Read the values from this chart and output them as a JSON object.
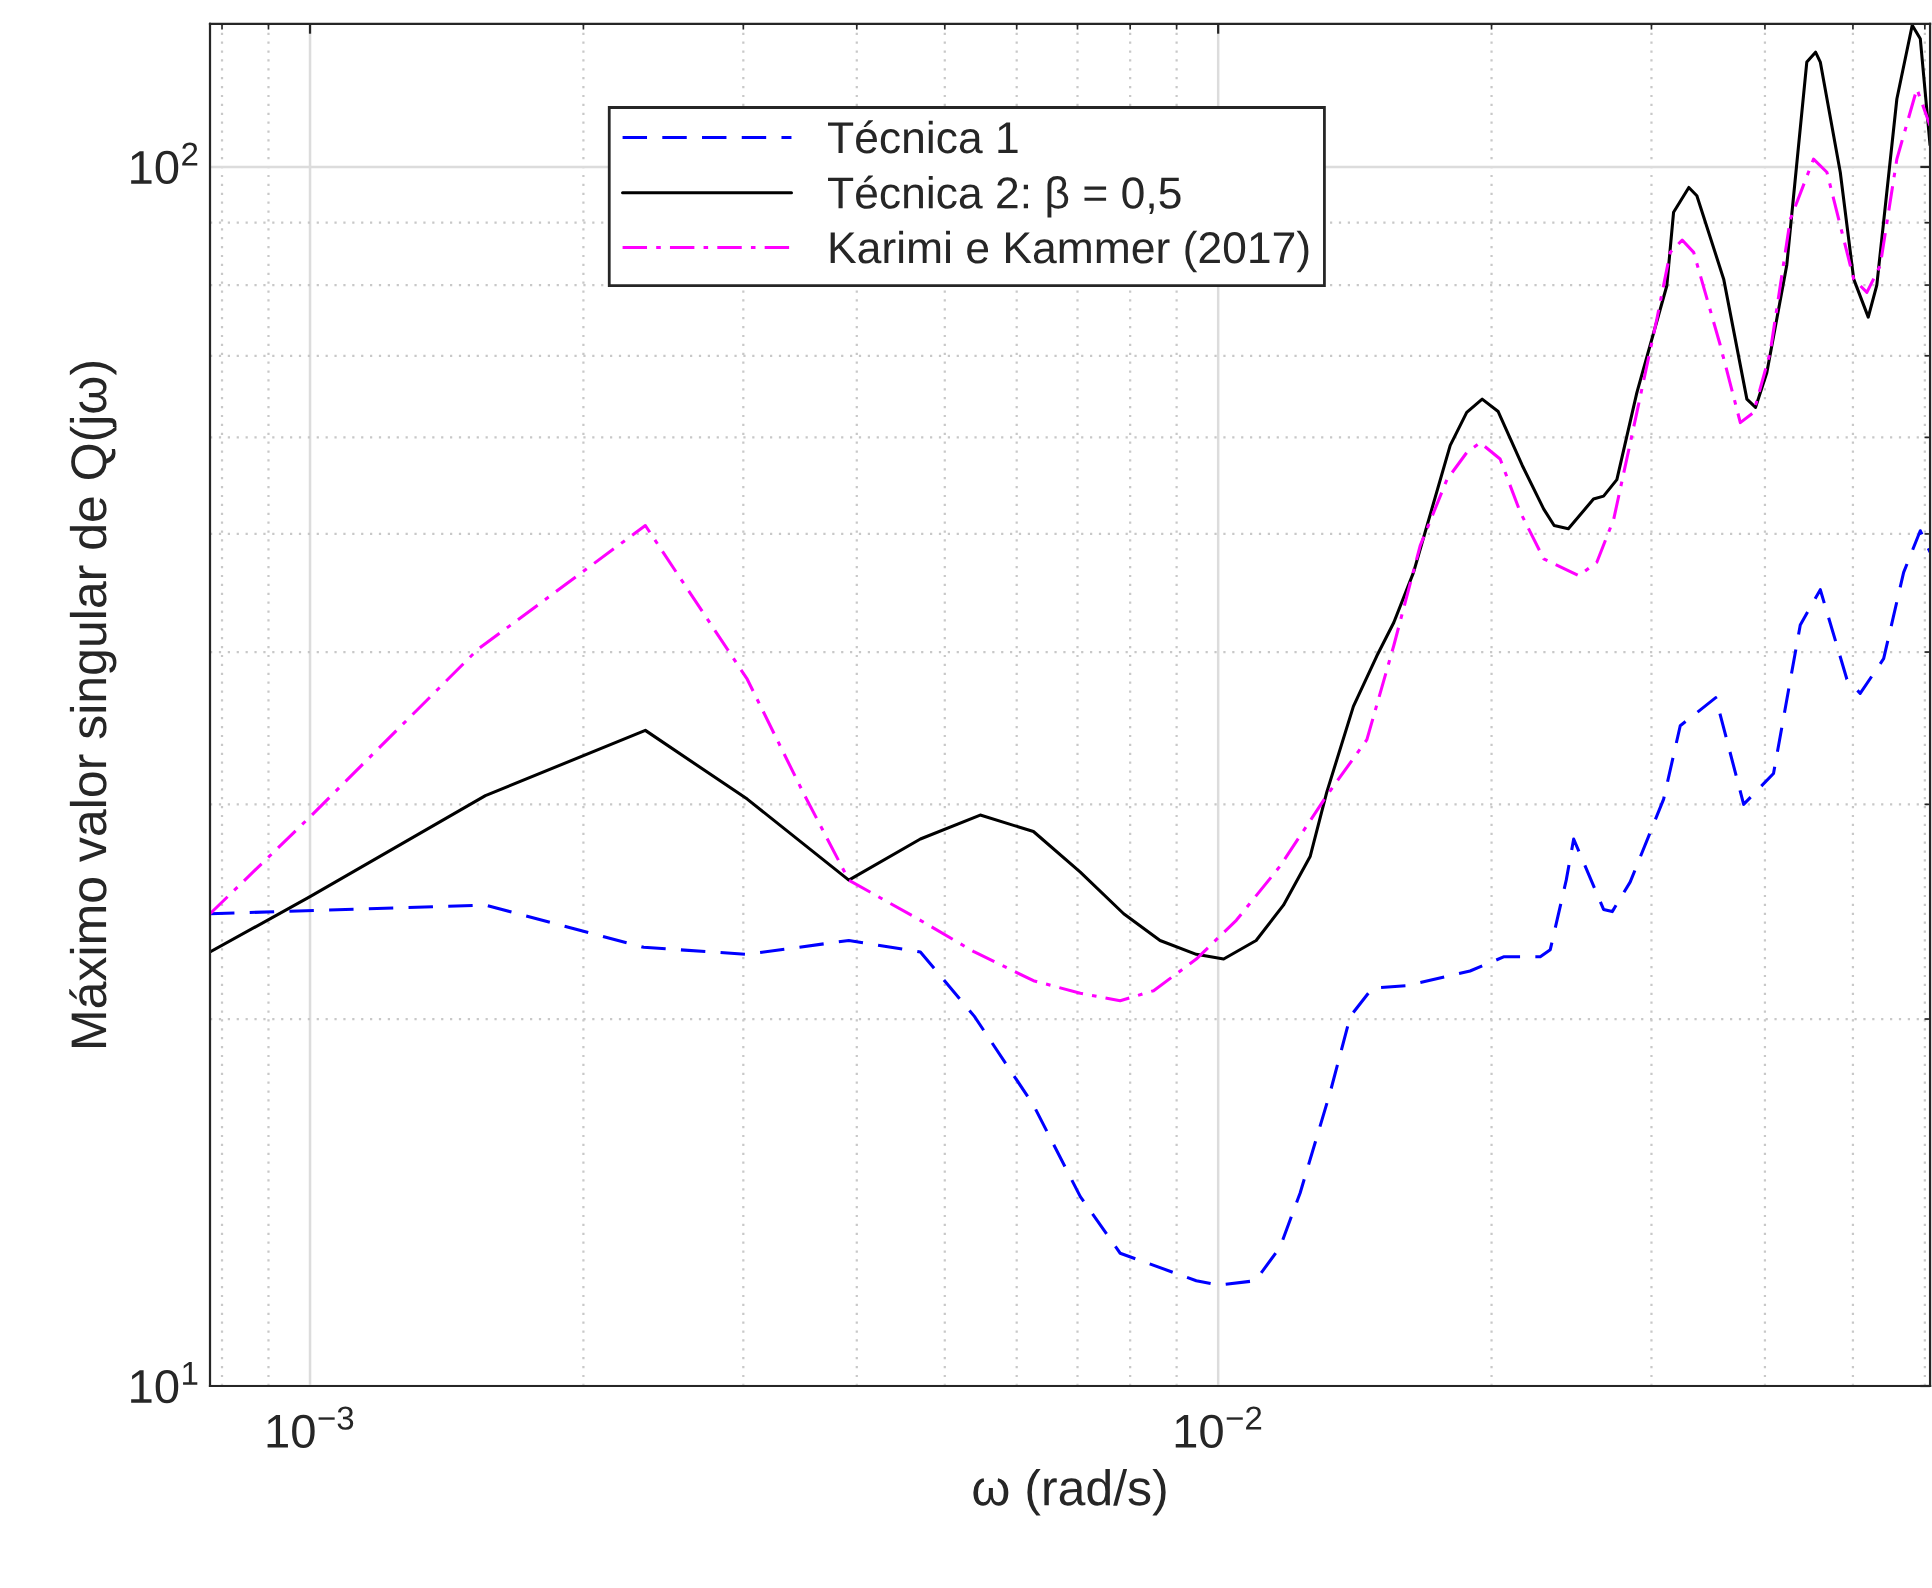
{
  "chart_data": {
    "type": "line",
    "xlabel": "ω (rad/s)",
    "ylabel": "Máximo valor singular de Q(jω)",
    "log": "xy",
    "grid": true,
    "legend": "top",
    "xlim": [
      0.000776,
      0.0608
    ],
    "ylim": [
      10,
      131
    ],
    "xticks": [
      {
        "value": 0.001,
        "label": "10$^{−3}$"
      },
      {
        "value": 0.01,
        "label": "10$^{−2}$"
      }
    ],
    "yticks": [
      {
        "value": 10,
        "label": "10$^{1}$"
      },
      {
        "value": 100,
        "label": "10$^{2}$"
      }
    ],
    "series": [
      {
        "name": "Técnica 1",
        "color": "#0000ff",
        "line_style": "dashed",
        "x": [
          0.000776,
          0.00156,
          0.00233,
          0.00303,
          0.00392,
          0.0047,
          0.00539,
          0.00626,
          0.00705,
          0.0078,
          0.00946,
          0.01,
          0.01099,
          0.0117,
          0.01231,
          0.01328,
          0.01398,
          0.01478,
          0.01611,
          0.01894,
          0.02065,
          0.02263,
          0.02321,
          0.02417,
          0.02463,
          0.02657,
          0.02716,
          0.02842,
          0.03094,
          0.03227,
          0.03531,
          0.0379,
          0.04088,
          0.04375,
          0.04603,
          0.04924,
          0.05093,
          0.05405,
          0.05686,
          0.05931,
          0.0608
        ],
        "values": [
          24.4,
          24.8,
          22.9,
          22.6,
          23.2,
          22.7,
          20.1,
          17.0,
          14.3,
          12.85,
          12.2,
          12.1,
          12.2,
          13.0,
          14.4,
          17.4,
          20.1,
          21.2,
          21.3,
          21.9,
          22.5,
          22.5,
          22.8,
          26.0,
          28.1,
          24.6,
          24.5,
          25.9,
          30.3,
          34.8,
          36.7,
          30.0,
          31.8,
          42.1,
          45.0,
          38.0,
          37.0,
          39.5,
          46.5,
          50.3,
          48.3
        ]
      },
      {
        "name": "Técnica 2: β = 0,5",
        "color": "#000000",
        "line_style": "solid",
        "x": [
          0.000776,
          0.001,
          0.00156,
          0.00234,
          0.00303,
          0.00392,
          0.0047,
          0.00547,
          0.00626,
          0.00705,
          0.00787,
          0.00863,
          0.00946,
          0.01014,
          0.01101,
          0.0118,
          0.01263,
          0.01317,
          0.01409,
          0.01495,
          0.01561,
          0.01641,
          0.01801,
          0.01878,
          0.01953,
          0.02034,
          0.02162,
          0.02283,
          0.02344,
          0.0243,
          0.0259,
          0.02657,
          0.02748,
          0.02891,
          0.03119,
          0.03173,
          0.03298,
          0.03366,
          0.03603,
          0.03821,
          0.03906,
          0.04019,
          0.04228,
          0.04448,
          0.04548,
          0.04603,
          0.04842,
          0.0501,
          0.05198,
          0.05312,
          0.05589,
          0.05811,
          0.05931,
          0.0608
        ],
        "values": [
          22.7,
          25.2,
          30.5,
          34.5,
          30.3,
          26.0,
          28.1,
          29.4,
          28.5,
          26.4,
          24.4,
          23.2,
          22.6,
          22.4,
          23.2,
          24.8,
          27.2,
          30.7,
          36.1,
          39.7,
          42.3,
          46.5,
          59.1,
          62.9,
          64.5,
          63.0,
          56.9,
          52.4,
          50.8,
          50.5,
          53.4,
          53.7,
          55.4,
          65.3,
          79.9,
          91.8,
          96.2,
          94.7,
          80.9,
          64.5,
          63.5,
          67.8,
          83.1,
          121.9,
          124.2,
          121.9,
          99.0,
          80.9,
          75.3,
          80.0,
          113.7,
          130.7,
          127.4,
          104.2
        ]
      },
      {
        "name": "Karimi e Kammer (2017)",
        "color": "#ff00ff",
        "line_style": "dashdot",
        "x": [
          0.000776,
          0.001,
          0.00153,
          0.00234,
          0.00303,
          0.00349,
          0.00392,
          0.0047,
          0.00539,
          0.00626,
          0.00705,
          0.0078,
          0.00849,
          0.00946,
          0.01047,
          0.0117,
          0.01317,
          0.01458,
          0.01561,
          0.01669,
          0.01786,
          0.01878,
          0.01943,
          0.02044,
          0.02151,
          0.02283,
          0.02495,
          0.02612,
          0.02726,
          0.02891,
          0.03041,
          0.03146,
          0.03243,
          0.03339,
          0.03572,
          0.03758,
          0.03887,
          0.04053,
          0.04266,
          0.04525,
          0.04681,
          0.0501,
          0.0518,
          0.05358,
          0.05589,
          0.0588,
          0.0608
        ],
        "values": [
          24.4,
          29.3,
          40.2,
          50.8,
          38.0,
          30.7,
          26.0,
          24.1,
          22.7,
          21.5,
          21.0,
          20.7,
          21.1,
          22.4,
          24.1,
          26.7,
          30.5,
          33.9,
          40.5,
          48.9,
          55.4,
          58.3,
          59.4,
          57.6,
          52.1,
          47.7,
          46.2,
          47.4,
          51.4,
          62.9,
          75.0,
          85.1,
          87.1,
          85.1,
          71.4,
          61.7,
          62.9,
          70.4,
          90.6,
          101.5,
          99.0,
          80.9,
          78.9,
          83.0,
          101.5,
          115.9,
          108.1
        ]
      }
    ]
  }
}
